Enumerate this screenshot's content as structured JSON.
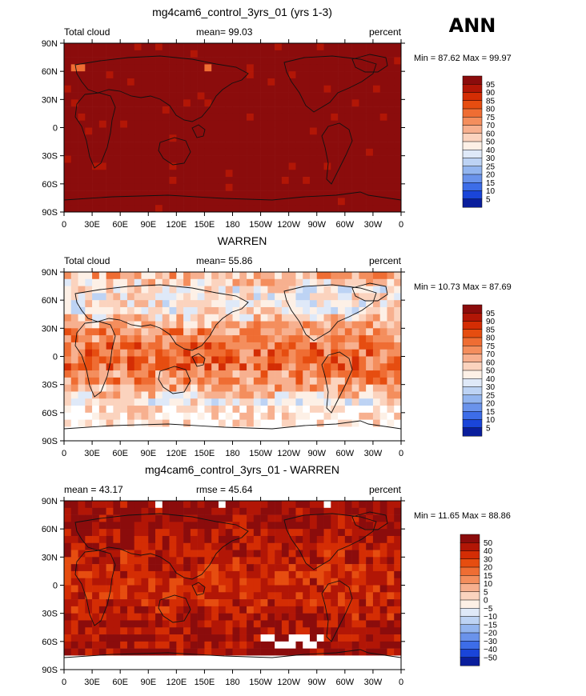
{
  "page": {
    "season": "ANN"
  },
  "chart_data": [
    {
      "type": "heatmap",
      "title": "mg4cam6_control_3yrs_01 (yrs 1-3)",
      "left_label": "Total cloud",
      "center_label": "mean=  99.03",
      "right_label": "percent",
      "minmax": "Min =  87.62 Max =  99.97",
      "lon_ticks": [
        "0",
        "30E",
        "60E",
        "90E",
        "120E",
        "150E",
        "180",
        "150W",
        "120W",
        "90W",
        "60W",
        "30W",
        "0"
      ],
      "lat_ticks": [
        "90N",
        "60N",
        "30N",
        "0",
        "30S",
        "60S",
        "90S"
      ],
      "xlim": [
        0,
        360
      ],
      "ylim": [
        -90,
        90
      ],
      "colorbar_labels": [
        "95",
        "90",
        "85",
        "80",
        "75",
        "70",
        "60",
        "50",
        "40",
        "30",
        "25",
        "20",
        "15",
        "10",
        "5"
      ],
      "colorbar_colors": [
        "#8b0c0c",
        "#b21606",
        "#d42d04",
        "#e64d10",
        "#ef6d33",
        "#f48e5d",
        "#f7b08f",
        "#fbd3be",
        "#fdf0e6",
        "#dfe9f8",
        "#bdd3f4",
        "#93b5ef",
        "#6a93eb",
        "#3d6de8",
        "#1a45d9",
        "#0a1e9c"
      ],
      "field_mean": 99.03
    },
    {
      "type": "heatmap",
      "title": "WARREN",
      "left_label": "Total cloud",
      "center_label": "mean=  55.86",
      "right_label": "percent",
      "minmax": "Min =  10.73 Max =  87.69",
      "lon_ticks": [
        "0",
        "30E",
        "60E",
        "90E",
        "120E",
        "150E",
        "180",
        "150W",
        "120W",
        "90W",
        "60W",
        "30W",
        "0"
      ],
      "lat_ticks": [
        "90N",
        "60N",
        "30N",
        "0",
        "30S",
        "60S",
        "90S"
      ],
      "xlim": [
        0,
        360
      ],
      "ylim": [
        -90,
        90
      ],
      "colorbar_labels": [
        "95",
        "90",
        "85",
        "80",
        "75",
        "70",
        "60",
        "50",
        "40",
        "30",
        "25",
        "20",
        "15",
        "10",
        "5"
      ],
      "colorbar_colors": [
        "#8b0c0c",
        "#b21606",
        "#d42d04",
        "#e64d10",
        "#ef6d33",
        "#f48e5d",
        "#f7b08f",
        "#fbd3be",
        "#fdf0e6",
        "#dfe9f8",
        "#bdd3f4",
        "#93b5ef",
        "#6a93eb",
        "#3d6de8",
        "#1a45d9",
        "#0a1e9c"
      ],
      "field_mean": 55.86
    },
    {
      "type": "heatmap",
      "title": "mg4cam6_control_3yrs_01 - WARREN",
      "left_label": "mean =  43.17",
      "center_label": "rmse =  45.64",
      "right_label": "percent",
      "minmax": "Min =  11.65 Max =  88.86",
      "lon_ticks": [
        "0",
        "30E",
        "60E",
        "90E",
        "120E",
        "150E",
        "180",
        "150W",
        "120W",
        "90W",
        "60W",
        "30W",
        "0"
      ],
      "lat_ticks": [
        "90N",
        "60N",
        "30N",
        "0",
        "30S",
        "60S",
        "90S"
      ],
      "xlim": [
        0,
        360
      ],
      "ylim": [
        -90,
        90
      ],
      "colorbar_labels": [
        "50",
        "40",
        "30",
        "20",
        "15",
        "10",
        "5",
        "0",
        "−5",
        "−10",
        "−15",
        "−20",
        "−30",
        "−40",
        "−50"
      ],
      "colorbar_colors": [
        "#8b0c0c",
        "#b21606",
        "#d42d04",
        "#e64d10",
        "#ef6d33",
        "#f48e5d",
        "#f7b08f",
        "#fbd3be",
        "#fdf0e6",
        "#dfe9f8",
        "#bdd3f4",
        "#93b5ef",
        "#6a93eb",
        "#3d6de8",
        "#1a45d9",
        "#0a1e9c"
      ],
      "field_mean": 43.17
    }
  ]
}
